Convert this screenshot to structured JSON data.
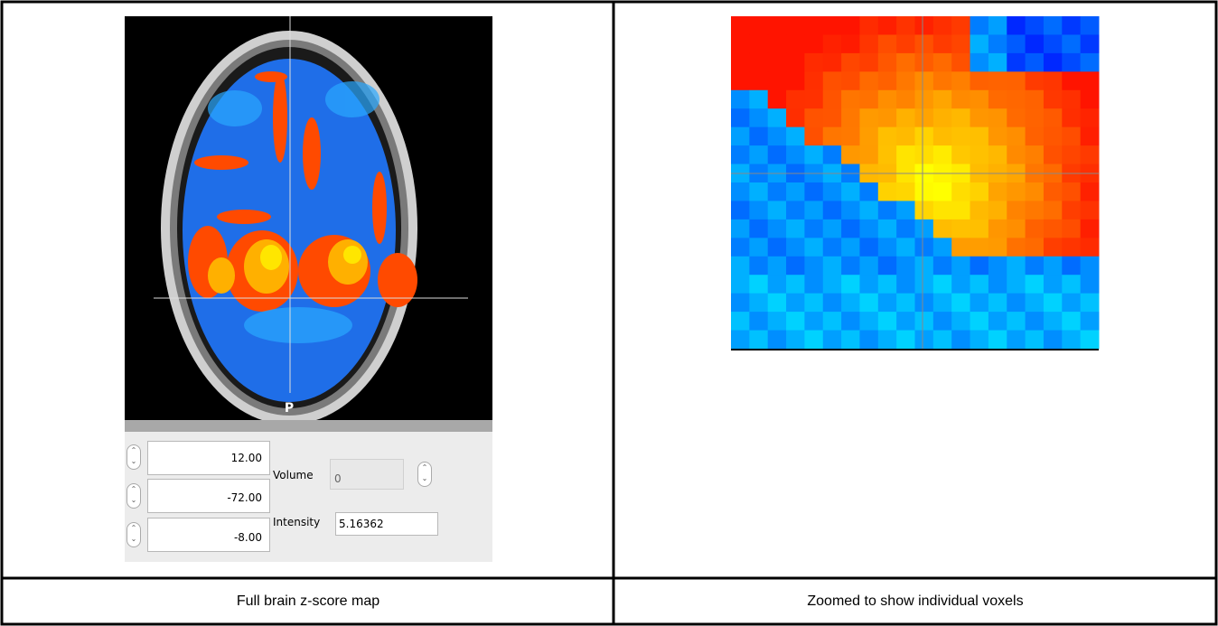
{
  "table": {
    "rows": [
      [
        {
          "viewer": {
            "orientation_label": "P",
            "coordinates": [
              "12.00",
              "-72.00",
              "-8.00"
            ],
            "volume_label": "Volume",
            "volume_value": "0",
            "intensity_label": "Intensity",
            "intensity_value": "5.16362"
          }
        },
        {
          "zoom": {}
        }
      ],
      [
        "Full brain z-score map",
        "Zoomed to show individual voxels"
      ]
    ]
  }
}
